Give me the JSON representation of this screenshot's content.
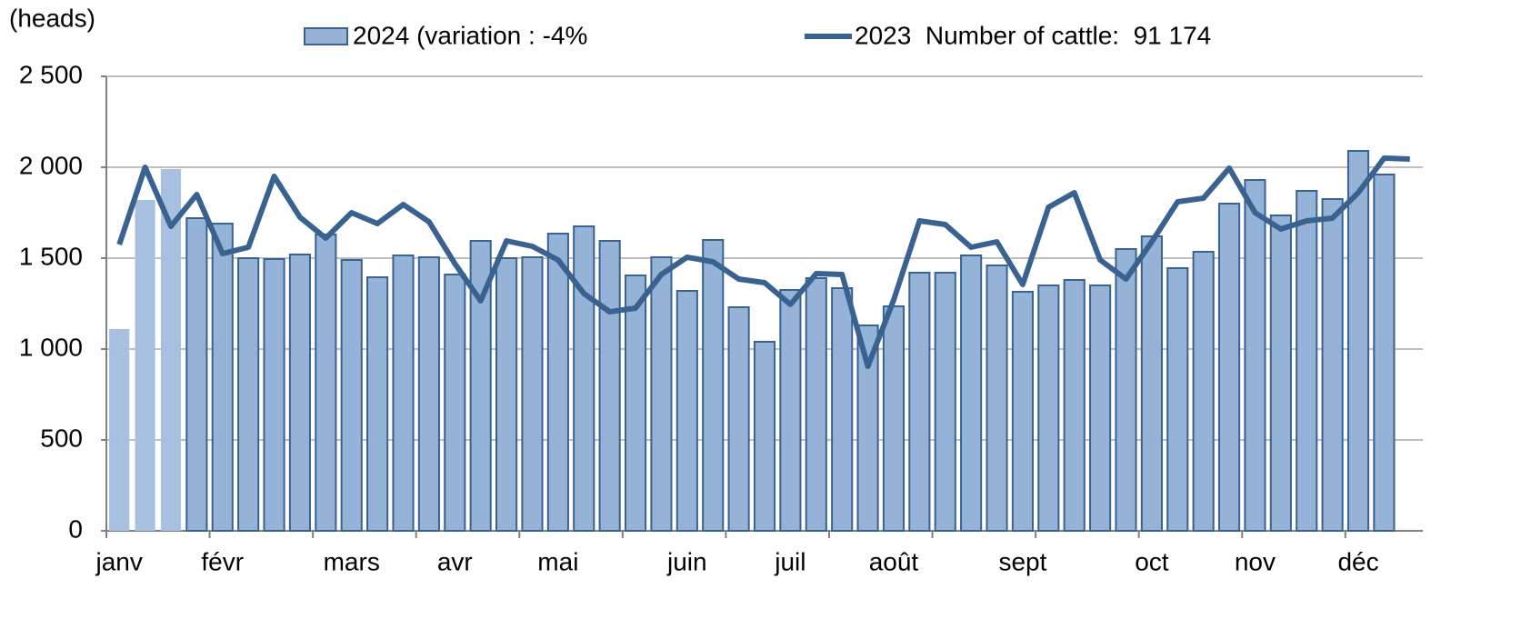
{
  "chart_data": {
    "type": "bar_line",
    "y_label": "(heads)",
    "categories": [
      "janv",
      null,
      null,
      null,
      "févr",
      null,
      null,
      null,
      null,
      "mars",
      null,
      null,
      null,
      "avr",
      null,
      null,
      null,
      "mai",
      null,
      null,
      null,
      null,
      "juin",
      null,
      null,
      null,
      "juil",
      null,
      null,
      null,
      "août",
      null,
      null,
      null,
      null,
      "sept",
      null,
      null,
      null,
      null,
      "oct",
      null,
      null,
      null,
      "nov",
      null,
      null,
      null,
      "déc",
      null,
      null
    ],
    "series": [
      {
        "name": "2024 (variation : -4%",
        "type": "bar",
        "color": "#95b3d7",
        "edge_color": "#3a6291",
        "point_colors": [
          "#a7c0df",
          "#a7c0df",
          "#a7c0df"
        ],
        "values": [
          1110,
          1820,
          1990,
          1720,
          1690,
          1500,
          1495,
          1520,
          1630,
          1490,
          1395,
          1515,
          1505,
          1410,
          1595,
          1500,
          1505,
          1635,
          1675,
          1595,
          1405,
          1505,
          1320,
          1600,
          1230,
          1040,
          1325,
          1390,
          1335,
          1130,
          1235,
          1420,
          1420,
          1515,
          1460,
          1315,
          1350,
          1380,
          1350,
          1550,
          1620,
          1445,
          1535,
          1800,
          1930,
          1735,
          1870,
          1825,
          2090,
          1960,
          null
        ]
      },
      {
        "name": "2023  Number of cattle:  91 174",
        "type": "line",
        "color": "#3a6291",
        "values": [
          1575,
          2000,
          1675,
          1850,
          1525,
          1560,
          1950,
          1725,
          1610,
          1750,
          1690,
          1795,
          1700,
          1470,
          1265,
          1595,
          1565,
          1490,
          1305,
          1205,
          1225,
          1410,
          1505,
          1480,
          1385,
          1365,
          1245,
          1415,
          1410,
          905,
          1270,
          1705,
          1685,
          1560,
          1590,
          1355,
          1780,
          1860,
          1490,
          1385,
          1590,
          1810,
          1830,
          1995,
          1750,
          1660,
          1705,
          1720,
          1860,
          2050,
          2045
        ]
      }
    ],
    "ylim": [
      0,
      2500
    ],
    "yticks": [
      0,
      500,
      {
        "value": 1000,
        "label": "1 000"
      },
      {
        "value": 1500,
        "label": "1 500"
      },
      {
        "value": 2000,
        "label": "2 000"
      },
      {
        "value": 2500,
        "label": "2 500"
      }
    ],
    "grid": true
  }
}
